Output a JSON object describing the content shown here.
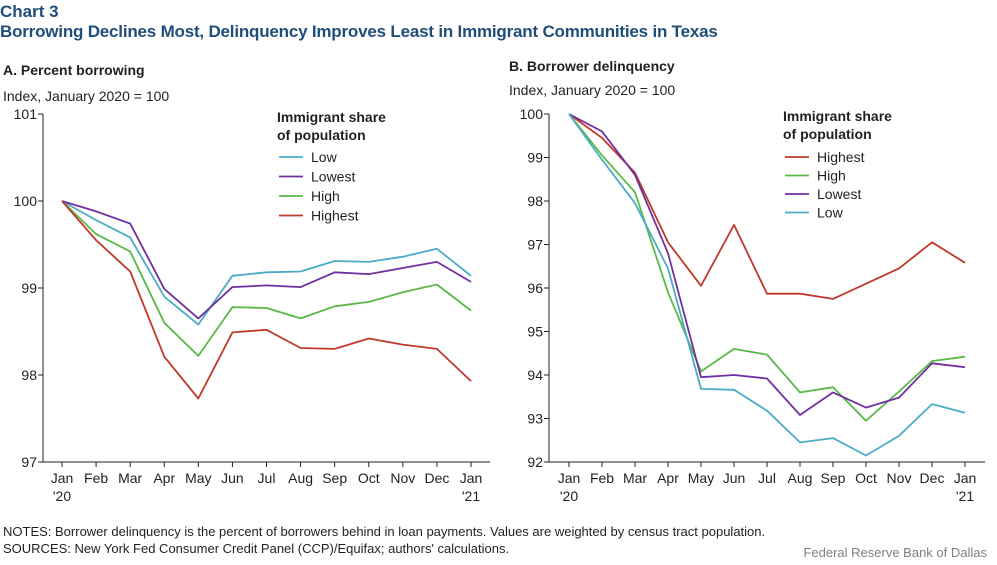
{
  "header": {
    "chart_label": "Chart 3",
    "title": "Borrowing Declines Most, Delinquency Improves Least in Immigrant Communities in Texas"
  },
  "footer": {
    "notes": "NOTES: Borrower delinquency is the percent of borrowers behind in loan payments. Values are weighted by census tract population.",
    "sources": "SOURCES: New York Fed Consumer Credit Panel (CCP)/Equifax; authors' calculations.",
    "credit": "Federal Reserve Bank of Dallas"
  },
  "colors": {
    "title": "#1f4e79",
    "Low": "#4bacc6",
    "Lowest": "#7030a0",
    "High": "#5ab946",
    "Highest": "#c0392b",
    "axis": "#231f20"
  },
  "chart_data": [
    {
      "type": "line",
      "panel_title": "A. Percent borrowing",
      "unit_label": "Index,  January 2020 = 100",
      "legend_title": [
        "Immigrant share",
        "of population"
      ],
      "legend_position": "top-right",
      "grid": false,
      "categories": [
        "Jan '20",
        "Feb",
        "Mar",
        "Apr",
        "May",
        "Jun",
        "Jul",
        "Aug",
        "Sep",
        "Oct",
        "Nov",
        "Dec",
        "Jan '21"
      ],
      "x_tick_labels": [
        [
          "Jan",
          "'20"
        ],
        [
          "Feb"
        ],
        [
          "Mar"
        ],
        [
          "Apr"
        ],
        [
          "May"
        ],
        [
          "Jun"
        ],
        [
          "Jul"
        ],
        [
          "Aug"
        ],
        [
          "Sep"
        ],
        [
          "Oct"
        ],
        [
          "Nov"
        ],
        [
          "Dec"
        ],
        [
          "Jan",
          "'21"
        ]
      ],
      "ylim": [
        97,
        101
      ],
      "yticks": [
        97,
        98,
        99,
        100,
        101
      ],
      "series": [
        {
          "name": "Low",
          "values": [
            100,
            99.78,
            99.58,
            98.9,
            98.58,
            99.14,
            99.18,
            99.19,
            99.31,
            99.3,
            99.36,
            99.45,
            99.14
          ]
        },
        {
          "name": "Lowest",
          "values": [
            100,
            99.88,
            99.74,
            98.99,
            98.65,
            99.01,
            99.03,
            99.01,
            99.18,
            99.16,
            99.23,
            99.3,
            99.07
          ]
        },
        {
          "name": "High",
          "values": [
            100,
            99.62,
            99.42,
            98.6,
            98.22,
            98.78,
            98.77,
            98.65,
            98.79,
            98.84,
            98.95,
            99.04,
            98.74
          ]
        },
        {
          "name": "Highest",
          "values": [
            100,
            99.55,
            99.19,
            98.21,
            97.73,
            98.49,
            98.52,
            98.31,
            98.3,
            98.42,
            98.35,
            98.3,
            97.93
          ]
        }
      ]
    },
    {
      "type": "line",
      "panel_title": "B. Borrower delinquency",
      "unit_label": "Index,  January 2020 = 100",
      "legend_title": [
        "Immigrant share",
        "of population"
      ],
      "legend_position": "top-right",
      "grid": false,
      "categories": [
        "Jan '20",
        "Feb",
        "Mar",
        "Apr",
        "May",
        "Jun",
        "Jul",
        "Aug",
        "Sep",
        "Oct",
        "Nov",
        "Dec",
        "Jan '21"
      ],
      "x_tick_labels": [
        [
          "Jan",
          "'20"
        ],
        [
          "Feb"
        ],
        [
          "Mar"
        ],
        [
          "Apr"
        ],
        [
          "May"
        ],
        [
          "Jun"
        ],
        [
          "Jul"
        ],
        [
          "Aug"
        ],
        [
          "Sep"
        ],
        [
          "Oct"
        ],
        [
          "Nov"
        ],
        [
          "Dec"
        ],
        [
          "Jan",
          "'21"
        ]
      ],
      "ylim": [
        92,
        100
      ],
      "yticks": [
        92,
        93,
        94,
        95,
        96,
        97,
        98,
        99,
        100
      ],
      "series": [
        {
          "name": "Highest",
          "values": [
            100,
            99.45,
            98.65,
            97.05,
            96.05,
            97.45,
            95.87,
            95.87,
            95.75,
            96.1,
            96.45,
            97.05,
            96.58
          ]
        },
        {
          "name": "High",
          "values": [
            100,
            99.05,
            98.2,
            95.9,
            94.08,
            94.6,
            94.47,
            93.6,
            93.72,
            92.95,
            93.62,
            94.32,
            94.42
          ]
        },
        {
          "name": "Lowest",
          "values": [
            100,
            99.6,
            98.6,
            96.8,
            93.95,
            94.0,
            93.92,
            93.08,
            93.6,
            93.25,
            93.48,
            94.27,
            94.18
          ]
        },
        {
          "name": "Low",
          "values": [
            100,
            98.95,
            97.95,
            96.45,
            93.68,
            93.66,
            93.18,
            92.45,
            92.55,
            92.15,
            92.6,
            93.33,
            93.13
          ]
        }
      ]
    }
  ]
}
